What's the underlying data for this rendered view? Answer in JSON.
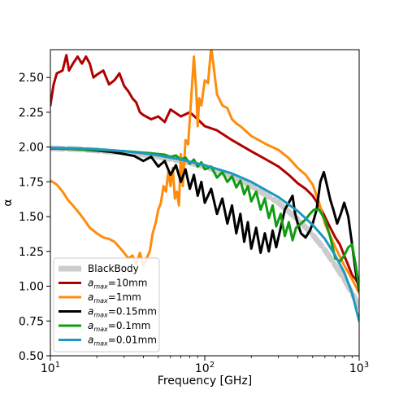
{
  "chart_data": {
    "type": "line",
    "xlabel": "Frequency [GHz]",
    "ylabel": "α",
    "xscale": "log",
    "xlim": [
      10,
      1000
    ],
    "ylim": [
      0.5,
      2.7
    ],
    "grid": false,
    "legend_position": "lower-left",
    "x_ticks": [
      {
        "value": 10,
        "base": "10",
        "exp": "1"
      },
      {
        "value": 100,
        "base": "10",
        "exp": "2"
      },
      {
        "value": 1000,
        "base": "10",
        "exp": "3"
      }
    ],
    "y_ticks": [
      "0.50",
      "0.75",
      "1.00",
      "1.25",
      "1.50",
      "1.75",
      "2.00",
      "2.25",
      "2.50"
    ],
    "series": [
      {
        "name": "BlackBody",
        "legend_text": "BlackBody",
        "color": "#cccccc",
        "style": "dashed",
        "width": 7,
        "x": [
          10,
          15,
          20,
          30,
          40,
          50,
          70,
          100,
          150,
          200,
          300,
          400,
          500,
          600,
          700,
          800,
          900,
          1000
        ],
        "y": [
          1.99,
          1.985,
          1.975,
          1.96,
          1.945,
          1.93,
          1.9,
          1.86,
          1.79,
          1.72,
          1.6,
          1.48,
          1.37,
          1.26,
          1.15,
          1.05,
          0.95,
          0.85
        ]
      },
      {
        "name": "amax=10mm",
        "legend_base": "a",
        "legend_sub": "max",
        "legend_suffix": "=10mm",
        "color": "#b00000",
        "style": "solid",
        "width": 3,
        "x": [
          10,
          10.5,
          11,
          12,
          12.7,
          13.2,
          14,
          15,
          16,
          17,
          18,
          19,
          20,
          22,
          24,
          26,
          28,
          30,
          32,
          34,
          36,
          38,
          40,
          45,
          50,
          55,
          60,
          70,
          80,
          90,
          100,
          120,
          150,
          200,
          250,
          300,
          350,
          400,
          450,
          500,
          550,
          600,
          650,
          700,
          750,
          800,
          850,
          900,
          950,
          1000
        ],
        "y": [
          2.3,
          2.45,
          2.53,
          2.55,
          2.66,
          2.55,
          2.6,
          2.65,
          2.6,
          2.65,
          2.6,
          2.5,
          2.52,
          2.55,
          2.45,
          2.48,
          2.53,
          2.44,
          2.4,
          2.35,
          2.32,
          2.25,
          2.23,
          2.2,
          2.22,
          2.18,
          2.27,
          2.22,
          2.25,
          2.2,
          2.15,
          2.12,
          2.05,
          1.97,
          1.91,
          1.86,
          1.8,
          1.74,
          1.7,
          1.65,
          1.58,
          1.5,
          1.42,
          1.35,
          1.3,
          1.22,
          1.15,
          1.08,
          1.05,
          1.0
        ]
      },
      {
        "name": "amax=1mm",
        "legend_base": "a",
        "legend_sub": "max",
        "legend_suffix": "=1mm",
        "color": "#ff8c0a",
        "style": "solid",
        "width": 3,
        "x": [
          10,
          11,
          12,
          13,
          14,
          15,
          16,
          17,
          18,
          20,
          22,
          24,
          26,
          28,
          30,
          32,
          34,
          36,
          38,
          40,
          42,
          44,
          46,
          48,
          50,
          52,
          54,
          56,
          58,
          60,
          62,
          64,
          66,
          68,
          70,
          72,
          75,
          78,
          80,
          82,
          85,
          88,
          90,
          92,
          95,
          100,
          105,
          110,
          115,
          120,
          130,
          140,
          150,
          160,
          170,
          200,
          250,
          300,
          350,
          400,
          450,
          500,
          550,
          600,
          700,
          800,
          900,
          1000
        ],
        "y": [
          1.76,
          1.73,
          1.68,
          1.62,
          1.58,
          1.54,
          1.5,
          1.46,
          1.42,
          1.38,
          1.35,
          1.34,
          1.32,
          1.28,
          1.24,
          1.2,
          1.22,
          1.16,
          1.24,
          1.15,
          1.2,
          1.25,
          1.38,
          1.45,
          1.55,
          1.6,
          1.72,
          1.68,
          1.82,
          1.72,
          1.85,
          1.63,
          1.68,
          1.58,
          1.95,
          1.72,
          2.05,
          2.02,
          2.2,
          2.38,
          2.65,
          2.4,
          2.15,
          2.35,
          2.3,
          2.48,
          2.46,
          2.72,
          2.55,
          2.38,
          2.3,
          2.28,
          2.2,
          2.17,
          2.15,
          2.08,
          2.02,
          1.98,
          1.92,
          1.85,
          1.8,
          1.73,
          1.6,
          1.45,
          1.28,
          1.15,
          1.05,
          0.95
        ]
      },
      {
        "name": "amax=0.15mm",
        "legend_base": "a",
        "legend_sub": "max",
        "legend_suffix": "=0.15mm",
        "color": "#000000",
        "style": "solid",
        "width": 3,
        "x": [
          10,
          15,
          20,
          25,
          30,
          35,
          40,
          45,
          50,
          55,
          60,
          65,
          70,
          75,
          80,
          85,
          90,
          95,
          100,
          110,
          120,
          130,
          140,
          150,
          160,
          170,
          180,
          190,
          200,
          215,
          230,
          245,
          260,
          275,
          290,
          310,
          330,
          350,
          370,
          385,
          400,
          420,
          450,
          480,
          500,
          530,
          560,
          590,
          620,
          650,
          680,
          720,
          760,
          800,
          850,
          900,
          950,
          1000
        ],
        "y": [
          1.99,
          1.985,
          1.975,
          1.965,
          1.95,
          1.935,
          1.9,
          1.93,
          1.86,
          1.9,
          1.8,
          1.87,
          1.75,
          1.84,
          1.7,
          1.8,
          1.65,
          1.75,
          1.6,
          1.7,
          1.52,
          1.63,
          1.45,
          1.58,
          1.38,
          1.52,
          1.32,
          1.46,
          1.27,
          1.42,
          1.24,
          1.38,
          1.25,
          1.4,
          1.28,
          1.42,
          1.55,
          1.6,
          1.65,
          1.52,
          1.45,
          1.38,
          1.35,
          1.4,
          1.45,
          1.55,
          1.75,
          1.82,
          1.72,
          1.62,
          1.55,
          1.45,
          1.52,
          1.6,
          1.5,
          1.3,
          1.1,
          0.97
        ]
      },
      {
        "name": "amax=0.1mm",
        "legend_base": "a",
        "legend_sub": "max",
        "legend_suffix": "=0.1mm",
        "color": "#119c11",
        "style": "solid",
        "width": 3,
        "x": [
          10,
          15,
          20,
          25,
          30,
          35,
          40,
          45,
          50,
          55,
          60,
          65,
          70,
          75,
          80,
          85,
          90,
          95,
          100,
          110,
          120,
          130,
          140,
          150,
          160,
          170,
          180,
          190,
          200,
          215,
          230,
          245,
          260,
          275,
          290,
          310,
          330,
          350,
          370,
          390,
          420,
          450,
          480,
          510,
          550,
          600,
          650,
          700,
          750,
          800,
          850,
          900,
          950,
          1000
        ],
        "y": [
          1.99,
          1.985,
          1.98,
          1.975,
          1.97,
          1.965,
          1.96,
          1.955,
          1.95,
          1.945,
          1.93,
          1.94,
          1.91,
          1.925,
          1.88,
          1.91,
          1.86,
          1.89,
          1.84,
          1.86,
          1.78,
          1.82,
          1.75,
          1.79,
          1.71,
          1.76,
          1.66,
          1.72,
          1.61,
          1.68,
          1.55,
          1.63,
          1.49,
          1.58,
          1.43,
          1.52,
          1.36,
          1.46,
          1.33,
          1.42,
          1.45,
          1.48,
          1.52,
          1.55,
          1.55,
          1.48,
          1.35,
          1.2,
          1.18,
          1.22,
          1.28,
          1.3,
          1.15,
          0.98
        ]
      },
      {
        "name": "amax=0.01mm",
        "legend_base": "a",
        "legend_sub": "max",
        "legend_suffix": "=0.01mm",
        "color": "#1e98bf",
        "style": "solid",
        "width": 3,
        "x": [
          10,
          15,
          20,
          30,
          40,
          50,
          70,
          100,
          150,
          200,
          300,
          400,
          500,
          600,
          700,
          800,
          900,
          1000
        ],
        "y": [
          1.995,
          1.99,
          1.985,
          1.97,
          1.955,
          1.94,
          1.91,
          1.87,
          1.81,
          1.75,
          1.64,
          1.54,
          1.44,
          1.34,
          1.22,
          1.1,
          0.95,
          0.75
        ]
      }
    ]
  }
}
